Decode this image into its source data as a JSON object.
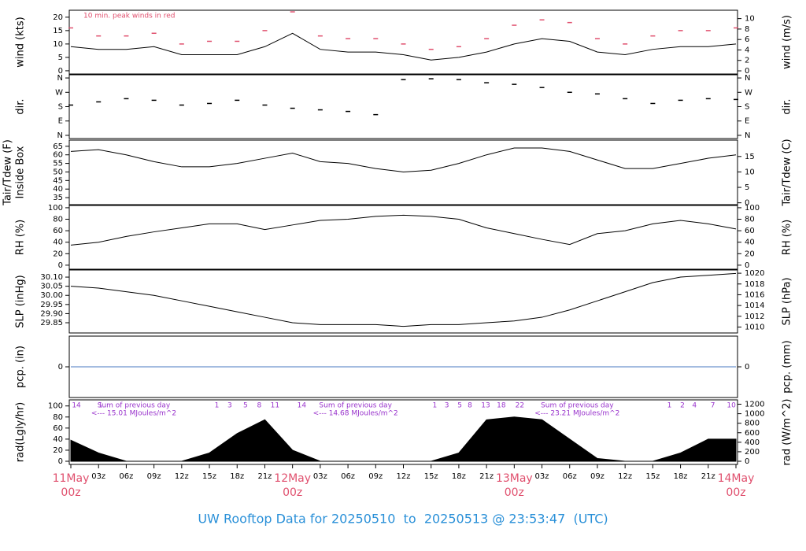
{
  "title": "UW Rooftop Data for 20250510  to  20250513 @ 23:53:47  (UTC)",
  "time_axis": {
    "x": [
      0,
      3,
      6,
      9,
      12,
      15,
      18,
      21,
      24,
      27,
      30,
      33,
      36,
      39,
      42,
      45,
      48,
      51,
      54,
      57,
      60,
      63,
      66,
      69,
      72
    ],
    "xlim": [
      0,
      72
    ],
    "xticks": [
      {
        "value": 0,
        "label": "00z"
      },
      {
        "value": 3,
        "label": "03z"
      },
      {
        "value": 6,
        "label": "06z"
      },
      {
        "value": 9,
        "label": "09z"
      },
      {
        "value": 12,
        "label": "12z"
      },
      {
        "value": 15,
        "label": "15z"
      },
      {
        "value": 18,
        "label": "18z"
      },
      {
        "value": 21,
        "label": "21z"
      },
      {
        "value": 24,
        "label": "00z"
      },
      {
        "value": 27,
        "label": "03z"
      },
      {
        "value": 30,
        "label": "06z"
      },
      {
        "value": 33,
        "label": "09z"
      },
      {
        "value": 36,
        "label": "12z"
      },
      {
        "value": 39,
        "label": "15z"
      },
      {
        "value": 42,
        "label": "18z"
      },
      {
        "value": 45,
        "label": "21z"
      },
      {
        "value": 48,
        "label": "00z"
      },
      {
        "value": 51,
        "label": "03z"
      },
      {
        "value": 54,
        "label": "06z"
      },
      {
        "value": 57,
        "label": "09z"
      },
      {
        "value": 60,
        "label": "12z"
      },
      {
        "value": 63,
        "label": "15z"
      },
      {
        "value": 66,
        "label": "18z"
      },
      {
        "value": 69,
        "label": "21z"
      },
      {
        "value": 72,
        "label": "00z"
      }
    ],
    "date_ticks": [
      {
        "value": 0,
        "label": "11May"
      },
      {
        "value": 24,
        "label": "12May"
      },
      {
        "value": 48,
        "label": "13May"
      },
      {
        "value": 72,
        "label": "14May"
      }
    ]
  },
  "chart_data": [
    {
      "type": "line",
      "ylabel": "wind (kts)",
      "y2label": "wind (m/s)",
      "annotation": "10 min. peak winds in red",
      "ylim": [
        -1.2,
        22.6
      ],
      "yticks": [
        0,
        5,
        10,
        15,
        20
      ],
      "y2lim": [
        -0.6,
        11.6
      ],
      "y2ticks": [
        0,
        2,
        4,
        6,
        8,
        10
      ],
      "series": [
        {
          "color": "#000000",
          "mark": "line",
          "values": [
            9,
            8,
            8,
            9,
            6,
            6,
            6,
            9,
            14,
            8,
            7,
            7,
            6,
            4,
            5,
            7,
            10,
            12,
            11,
            7,
            6,
            8,
            9,
            9,
            10
          ]
        },
        {
          "color": "#e0506e",
          "mark": "dash",
          "values": [
            16,
            13,
            13,
            14,
            10,
            11,
            11,
            15,
            22,
            13,
            12,
            12,
            10,
            8,
            9,
            12,
            17,
            19,
            18,
            12,
            10,
            13,
            15,
            15,
            16
          ]
        }
      ]
    },
    {
      "type": "scatter",
      "ylabel": "dir.",
      "y2label": "dir.",
      "ylim": [
        -20,
        380
      ],
      "yticks": [
        {
          "value": 0,
          "label": "N"
        },
        {
          "value": 90,
          "label": "E"
        },
        {
          "value": 180,
          "label": "S"
        },
        {
          "value": 270,
          "label": "W"
        },
        {
          "value": 360,
          "label": "N"
        }
      ],
      "y2lim": [
        -20,
        380
      ],
      "y2ticks": [
        {
          "value": 0,
          "label": "N"
        },
        {
          "value": 90,
          "label": "E"
        },
        {
          "value": 180,
          "label": "S"
        },
        {
          "value": 270,
          "label": "W"
        },
        {
          "value": 360,
          "label": "N"
        }
      ],
      "series": [
        {
          "color": "#000000",
          "mark": "dash",
          "values": [
            190,
            210,
            230,
            220,
            190,
            200,
            220,
            190,
            170,
            160,
            150,
            130,
            350,
            355,
            350,
            330,
            320,
            300,
            270,
            260,
            230,
            200,
            220,
            230,
            225
          ]
        }
      ]
    },
    {
      "type": "line",
      "ylabel": "Tair/Tdew (F)",
      "ylabel_sub": "Inside Box",
      "y2label": "Tair/Tdew (C)",
      "ylim": [
        30.9,
        68.6
      ],
      "yticks": [
        35,
        40,
        45,
        50,
        55,
        60,
        65
      ],
      "y2lim": [
        -0.6,
        20.3
      ],
      "y2ticks": [
        0,
        5,
        10,
        15
      ],
      "series": [
        {
          "color": "#000000",
          "mark": "line",
          "values": [
            62,
            63,
            60,
            56,
            53,
            53,
            55,
            58,
            61,
            56,
            55,
            52,
            50,
            51,
            55,
            60,
            64,
            64,
            62,
            57,
            52,
            52,
            55,
            58,
            60
          ]
        }
      ]
    },
    {
      "type": "line",
      "ylabel": "RH (%)",
      "y2label": "RH (%)",
      "ylim": [
        -7,
        104
      ],
      "yticks": [
        0,
        20,
        40,
        60,
        80,
        100
      ],
      "y2lim": [
        -7,
        104
      ],
      "y2ticks": [
        0,
        20,
        40,
        60,
        80,
        100
      ],
      "series": [
        {
          "color": "#000000",
          "mark": "line",
          "values": [
            35,
            40,
            50,
            58,
            65,
            72,
            72,
            62,
            70,
            78,
            80,
            85,
            87,
            85,
            80,
            65,
            55,
            45,
            36,
            55,
            60,
            72,
            78,
            72,
            63
          ]
        }
      ]
    },
    {
      "type": "line",
      "ylabel": "SLP (inHg)",
      "y2label": "SLP (hPa)",
      "ylim": [
        29.794,
        30.139
      ],
      "yticks": [
        29.85,
        {
          "value": 29.9,
          "label": "29.90"
        },
        29.95,
        {
          "value": 30,
          "label": "30.00"
        },
        30.05,
        {
          "value": 30.1,
          "label": "30.10"
        }
      ],
      "y2lim": [
        1008.9,
        1020.6
      ],
      "y2ticks": [
        1010,
        1012,
        1014,
        1016,
        1018,
        1020
      ],
      "series": [
        {
          "color": "#000000",
          "mark": "line",
          "values": [
            30.05,
            30.04,
            30.02,
            30,
            29.97,
            29.94,
            29.91,
            29.88,
            29.85,
            29.84,
            29.84,
            29.84,
            29.83,
            29.84,
            29.84,
            29.85,
            29.86,
            29.88,
            29.92,
            29.97,
            30.02,
            30.07,
            30.1,
            30.11,
            30.12
          ]
        }
      ]
    },
    {
      "type": "line",
      "ylabel": "pcp. (in)",
      "y2label": "pcp. (mm)",
      "ylim": [
        -1,
        1
      ],
      "yticks": [
        0
      ],
      "y2lim": [
        -25.4,
        25.4
      ],
      "y2ticks": [
        0
      ],
      "series": [
        {
          "color": "#4a78c0",
          "mark": "line",
          "values": [
            0,
            0,
            0,
            0,
            0,
            0,
            0,
            0,
            0,
            0,
            0,
            0,
            0,
            0,
            0,
            0,
            0,
            0,
            0,
            0,
            0,
            0,
            0,
            0,
            0
          ]
        }
      ]
    },
    {
      "type": "area",
      "ylabel": "rad(Lgly/hr)",
      "y2label": "rad (W/m^2)",
      "ylim": [
        -5.7,
        111
      ],
      "yticks": [
        0,
        20,
        40,
        60,
        80,
        100
      ],
      "y2lim": [
        -66,
        1291
      ],
      "y2ticks": [
        0,
        200,
        400,
        600,
        800,
        1000,
        1200
      ],
      "series": [
        {
          "color": "#000000",
          "mark": "area",
          "values": [
            38,
            15,
            0,
            0,
            0,
            15,
            50,
            75,
            20,
            0,
            0,
            0,
            0,
            0,
            15,
            75,
            80,
            75,
            40,
            5,
            0,
            0,
            15,
            40,
            40
          ]
        }
      ],
      "notes": [
        [
          "Sum of previous day",
          "<--- 15.01 MJoules/m^2"
        ],
        [
          "Sum of previous day",
          "<--- 14.68 MJoules/m^2"
        ],
        [
          "Sum of previous day",
          "<--- 23.21 MJoules/m^2"
        ]
      ],
      "hour_marks": [
        {
          "x": 0.6,
          "label": "14"
        },
        {
          "x": 3.2,
          "label": "1"
        },
        {
          "x": 15.8,
          "label": "1"
        },
        {
          "x": 17.2,
          "label": "3"
        },
        {
          "x": 18.9,
          "label": "5"
        },
        {
          "x": 20.4,
          "label": "8"
        },
        {
          "x": 22.1,
          "label": "11"
        },
        {
          "x": 25,
          "label": "14"
        },
        {
          "x": 39.4,
          "label": "1"
        },
        {
          "x": 40.7,
          "label": "3"
        },
        {
          "x": 42.1,
          "label": "5"
        },
        {
          "x": 43.2,
          "label": "8"
        },
        {
          "x": 44.9,
          "label": "13"
        },
        {
          "x": 46.6,
          "label": "18"
        },
        {
          "x": 48.6,
          "label": "22"
        },
        {
          "x": 64.8,
          "label": "1"
        },
        {
          "x": 66.2,
          "label": "2"
        },
        {
          "x": 67.5,
          "label": "4"
        },
        {
          "x": 69.5,
          "label": "7"
        },
        {
          "x": 71.5,
          "label": "10"
        }
      ]
    }
  ]
}
